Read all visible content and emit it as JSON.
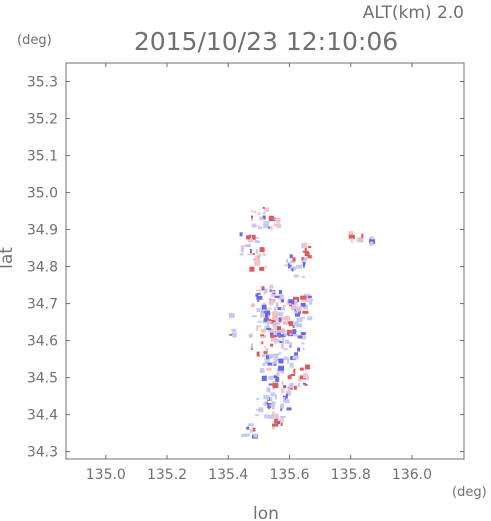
{
  "header": {
    "altitude_label": "ALT(km) 2.0",
    "timestamp": "2015/10/23 12:10:06"
  },
  "chart_data": {
    "type": "heatmap",
    "title": "2015/10/23 12:10:06",
    "xlabel": "lon",
    "ylabel": "lat",
    "x_unit": "(deg)",
    "y_unit": "(deg)",
    "xlim": [
      134.87,
      136.17
    ],
    "ylim": [
      34.28,
      35.35
    ],
    "x_ticks": [
      "135.0",
      "135.2",
      "135.4",
      "135.6",
      "135.8",
      "136.0"
    ],
    "y_ticks": [
      "34.3",
      "34.4",
      "34.5",
      "34.6",
      "34.7",
      "34.8",
      "34.9",
      "35.0",
      "35.1",
      "35.2",
      "35.3"
    ],
    "grid": false,
    "colors": {
      "positive": "#e05a5a",
      "negative": "#6a6ae8",
      "light_positive": "#f4c4c4",
      "light_negative": "#c4c8f4"
    },
    "clusters": [
      {
        "lon": 135.5,
        "lat": 34.93,
        "sign": -1,
        "spread": 0.03,
        "n": 20
      },
      {
        "lon": 135.55,
        "lat": 34.92,
        "sign": 1,
        "spread": 0.02,
        "n": 10
      },
      {
        "lon": 135.47,
        "lat": 34.86,
        "sign": -1,
        "spread": 0.03,
        "n": 18
      },
      {
        "lon": 135.5,
        "lat": 34.82,
        "sign": 1,
        "spread": 0.03,
        "n": 12
      },
      {
        "lon": 135.62,
        "lat": 34.8,
        "sign": -1,
        "spread": 0.03,
        "n": 18
      },
      {
        "lon": 135.66,
        "lat": 34.84,
        "sign": 1,
        "spread": 0.02,
        "n": 10
      },
      {
        "lon": 135.82,
        "lat": 34.88,
        "sign": 1,
        "spread": 0.02,
        "n": 8
      },
      {
        "lon": 135.86,
        "lat": 34.87,
        "sign": -1,
        "spread": 0.01,
        "n": 4
      },
      {
        "lon": 135.53,
        "lat": 34.7,
        "sign": -1,
        "spread": 0.05,
        "n": 45
      },
      {
        "lon": 135.58,
        "lat": 34.66,
        "sign": 1,
        "spread": 0.05,
        "n": 40
      },
      {
        "lon": 135.64,
        "lat": 34.68,
        "sign": -1,
        "spread": 0.04,
        "n": 30
      },
      {
        "lon": 135.52,
        "lat": 34.6,
        "sign": 1,
        "spread": 0.05,
        "n": 35
      },
      {
        "lon": 135.6,
        "lat": 34.58,
        "sign": -1,
        "spread": 0.05,
        "n": 35
      },
      {
        "lon": 135.55,
        "lat": 34.52,
        "sign": -1,
        "spread": 0.04,
        "n": 25
      },
      {
        "lon": 135.63,
        "lat": 34.5,
        "sign": 1,
        "spread": 0.03,
        "n": 15
      },
      {
        "lon": 135.57,
        "lat": 34.45,
        "sign": -1,
        "spread": 0.04,
        "n": 25
      },
      {
        "lon": 135.52,
        "lat": 34.42,
        "sign": -1,
        "spread": 0.03,
        "n": 15
      },
      {
        "lon": 135.56,
        "lat": 34.38,
        "sign": 1,
        "spread": 0.02,
        "n": 10
      },
      {
        "lon": 135.47,
        "lat": 34.36,
        "sign": -1,
        "spread": 0.02,
        "n": 8
      },
      {
        "lon": 135.41,
        "lat": 34.62,
        "sign": -1,
        "spread": 0.01,
        "n": 3
      },
      {
        "lon": 135.42,
        "lat": 34.66,
        "sign": 1,
        "spread": 0.01,
        "n": 3
      }
    ]
  }
}
